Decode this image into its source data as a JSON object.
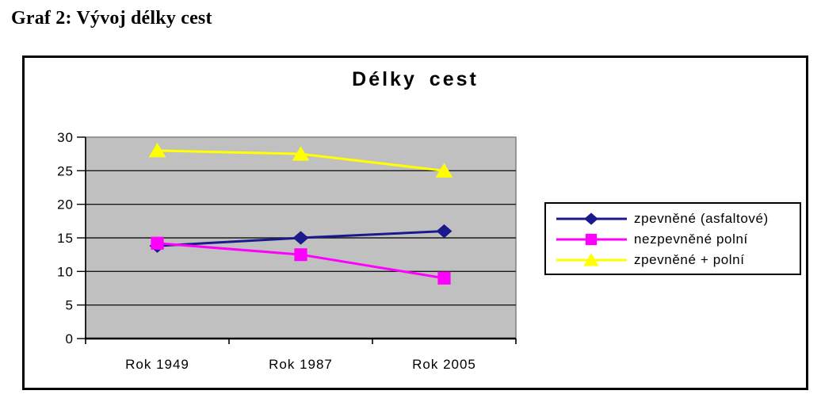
{
  "heading": "Graf 2: Vývoj délky cest",
  "chart_data": {
    "type": "line",
    "title": "Délky cest",
    "categories": [
      "Rok 1949",
      "Rok 1987",
      "Rok 2005"
    ],
    "series": [
      {
        "name": "zpevněné (asfaltové)",
        "marker": "diamond",
        "color": "#1A1A8C",
        "values": [
          13.8,
          15,
          16
        ]
      },
      {
        "name": "nezpevněné polní",
        "marker": "square",
        "color": "#FF00FF",
        "values": [
          14.2,
          12.5,
          9
        ]
      },
      {
        "name": "zpevněné + polní",
        "marker": "triangle",
        "color": "#FFFF00",
        "values": [
          28,
          27.5,
          25
        ]
      }
    ],
    "xlabel": "",
    "ylabel": "",
    "ylim": [
      0,
      30
    ],
    "y_ticks": [
      0,
      5,
      10,
      15,
      20,
      25,
      30
    ],
    "grid": true,
    "legend_position": "right",
    "plot_bg_color": "#C0C0C0",
    "grid_color": "#1a1a1a",
    "plot_border_color": "#808080",
    "axis_color": "#000000"
  }
}
